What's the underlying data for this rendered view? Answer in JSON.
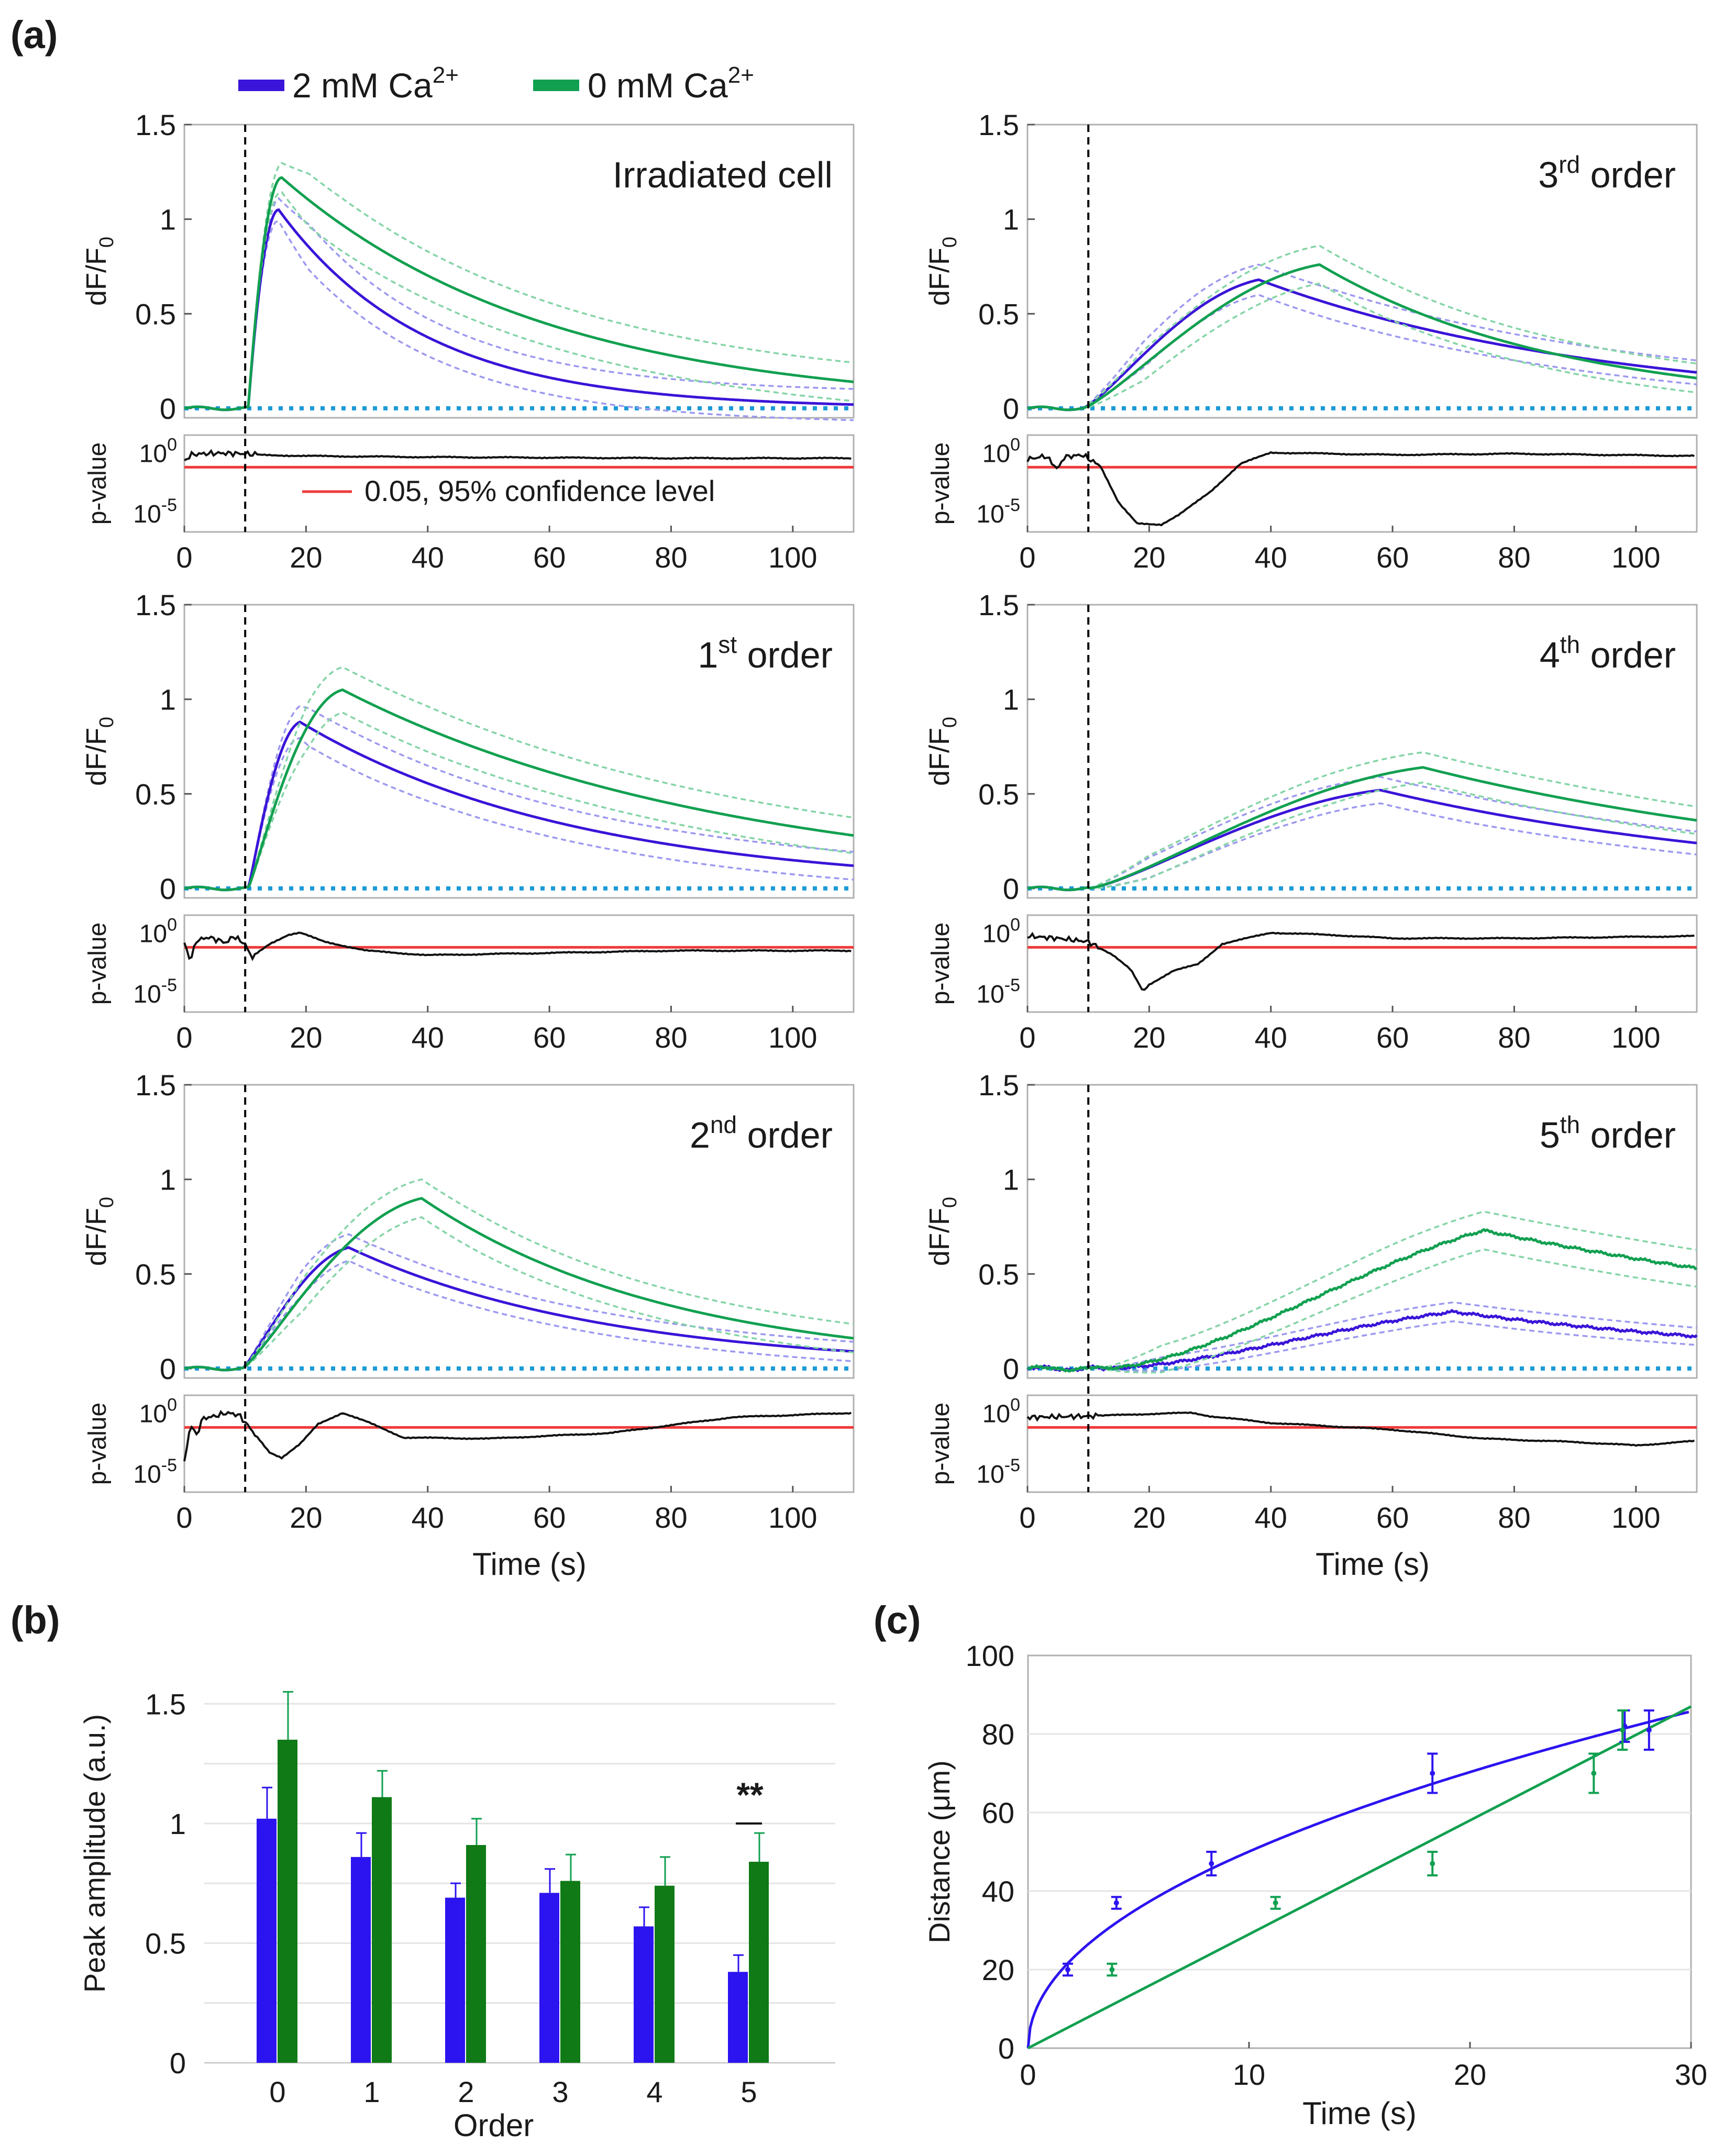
{
  "figure": {
    "panel_labels": {
      "a": "(a)",
      "b": "(b)",
      "c": "(c)"
    }
  },
  "colors": {
    "blue": "#3a14d8",
    "green": "#11a050",
    "blue_light": "#9c98f0",
    "green_light": "#84d4a6",
    "baseline": "#1b9ad6",
    "threshold": "#ee3a3a",
    "black": "#111111",
    "bar_blue": "#2c14f0",
    "bar_green": "#0f7a16"
  },
  "legend": {
    "blue_label": "2 mM Ca",
    "green_label": "0 mM Ca",
    "superscript": "2+"
  },
  "threshold_label": "0.05, 95% confidence level",
  "chart_data": [
    {
      "type": "line",
      "id": "irradiated",
      "title": "Irradiated cell",
      "ylabel": "dF/F0",
      "xlim": [
        0,
        110
      ],
      "ylim": [
        -0.05,
        1.5
      ],
      "yticks": [
        "0",
        "0.5",
        "1",
        "1.5"
      ],
      "stimulus_time": 10,
      "onset": 10.5,
      "rise_power": 1.0,
      "series": [
        {
          "name": "2 mM Ca2+",
          "peak": 1.05,
          "t_peak": 15.5,
          "end": 0.02,
          "band": 0.12
        },
        {
          "name": "0 mM Ca2+",
          "peak": 1.22,
          "t_peak": 16.0,
          "end": 0.14,
          "band": 0.14
        }
      ],
      "pvalue": {
        "ylabel": "p-value",
        "threshold": 0.05,
        "log_range": [
          -6.5,
          1
        ],
        "curve": [
          [
            0,
            -0.8
          ],
          [
            1,
            -0.2
          ],
          [
            3,
            -0.1
          ],
          [
            6,
            -0.05
          ],
          [
            10,
            -0.1
          ],
          [
            12,
            -0.2
          ],
          [
            20,
            -0.3
          ],
          [
            40,
            -0.4
          ],
          [
            80,
            -0.5
          ],
          [
            110,
            -0.5
          ]
        ]
      }
    },
    {
      "type": "line",
      "id": "order3",
      "title_num": "3",
      "title_sup": "rd",
      "title_rest": " order",
      "ylabel": "dF/F0",
      "xlim": [
        0,
        110
      ],
      "ylim": [
        -0.05,
        1.5
      ],
      "yticks": [
        "0",
        "0.5",
        "1",
        "1.5"
      ],
      "stimulus_time": 10,
      "onset": 9,
      "rise_power": 1.5,
      "series": [
        {
          "name": "2 mM Ca2+",
          "peak": 0.68,
          "t_peak": 38,
          "end": 0.19,
          "band": 0.08
        },
        {
          "name": "0 mM Ca2+",
          "peak": 0.76,
          "t_peak": 48,
          "end": 0.16,
          "band": 0.1
        }
      ],
      "pvalue": {
        "ylabel": "p-value",
        "threshold": 0.05,
        "log_range": [
          -6.5,
          1
        ],
        "curve": [
          [
            0,
            -0.6
          ],
          [
            3,
            -0.3
          ],
          [
            5,
            -1.5
          ],
          [
            6,
            -0.4
          ],
          [
            9,
            -0.2
          ],
          [
            12,
            -1.2
          ],
          [
            15,
            -4.5
          ],
          [
            18,
            -6.3
          ],
          [
            22,
            -6.4
          ],
          [
            25,
            -5.5
          ],
          [
            30,
            -3.5
          ],
          [
            35,
            -1
          ],
          [
            40,
            0
          ],
          [
            60,
            -0.2
          ],
          [
            80,
            -0.1
          ],
          [
            110,
            -0.3
          ]
        ]
      }
    },
    {
      "type": "line",
      "id": "order1",
      "title_num": "1",
      "title_sup": "st",
      "title_rest": " order",
      "ylabel": "dF/F0",
      "xlim": [
        0,
        110
      ],
      "ylim": [
        -0.05,
        1.5
      ],
      "yticks": [
        "0",
        "0.5",
        "1",
        "1.5"
      ],
      "stimulus_time": 10,
      "onset": 10.5,
      "rise_power": 1.2,
      "series": [
        {
          "name": "2 mM Ca2+",
          "peak": 0.88,
          "t_peak": 19,
          "end": 0.12,
          "band": 0.1
        },
        {
          "name": "0 mM Ca2+",
          "peak": 1.05,
          "t_peak": 26,
          "end": 0.28,
          "band": 0.12
        }
      ],
      "pvalue": {
        "ylabel": "p-value",
        "threshold": 0.05,
        "log_range": [
          -6.5,
          1
        ],
        "curve": [
          [
            0,
            -0.9
          ],
          [
            1,
            -2.5
          ],
          [
            2,
            -0.7
          ],
          [
            4,
            -0.4
          ],
          [
            7,
            -0.9
          ],
          [
            8,
            -0.3
          ],
          [
            10,
            -1
          ],
          [
            11,
            -2.2
          ],
          [
            14,
            -1
          ],
          [
            17,
            -0.2
          ],
          [
            19,
            0
          ],
          [
            23,
            -0.8
          ],
          [
            30,
            -1.6
          ],
          [
            40,
            -2
          ],
          [
            60,
            -1.8
          ],
          [
            80,
            -1.6
          ],
          [
            110,
            -1.6
          ]
        ]
      }
    },
    {
      "type": "line",
      "id": "order4",
      "title_num": "4",
      "title_sup": "th",
      "title_rest": " order",
      "ylabel": "dF/F0",
      "xlim": [
        0,
        110
      ],
      "ylim": [
        -0.05,
        1.5
      ],
      "yticks": [
        "0",
        "0.5",
        "1",
        "1.5"
      ],
      "stimulus_time": 10,
      "onset": 10,
      "rise_power": 1.6,
      "series": [
        {
          "name": "2 mM Ca2+",
          "peak": 0.52,
          "t_peak": 58,
          "end": 0.24,
          "band": 0.07
        },
        {
          "name": "0 mM Ca2+",
          "peak": 0.64,
          "t_peak": 65,
          "end": 0.36,
          "band": 0.08
        }
      ],
      "pvalue": {
        "ylabel": "p-value",
        "threshold": 0.05,
        "log_range": [
          -6.5,
          1
        ],
        "curve": [
          [
            0,
            -0.3
          ],
          [
            5,
            -0.5
          ],
          [
            10,
            -0.8
          ],
          [
            14,
            -2
          ],
          [
            17,
            -3.3
          ],
          [
            19,
            -5.2
          ],
          [
            20,
            -4.6
          ],
          [
            24,
            -3.4
          ],
          [
            28,
            -2.8
          ],
          [
            32,
            -1
          ],
          [
            40,
            0
          ],
          [
            50,
            -0.2
          ],
          [
            60,
            -0.5
          ],
          [
            80,
            -0.5
          ],
          [
            110,
            -0.3
          ]
        ]
      }
    },
    {
      "type": "line",
      "id": "order2",
      "title_num": "2",
      "title_sup": "nd",
      "title_rest": " order",
      "ylabel": "dF/F0",
      "xlim": [
        0,
        110
      ],
      "ylim": [
        -0.05,
        1.5
      ],
      "yticks": [
        "0",
        "0.5",
        "1",
        "1.5"
      ],
      "stimulus_time": 10,
      "onset": 9.5,
      "rise_power": 1.4,
      "series": [
        {
          "name": "2 mM Ca2+",
          "peak": 0.64,
          "t_peak": 27,
          "end": 0.09,
          "band": 0.07
        },
        {
          "name": "0 mM Ca2+",
          "peak": 0.9,
          "t_peak": 39,
          "end": 0.16,
          "band": 0.1
        }
      ],
      "pvalue": {
        "ylabel": "p-value",
        "threshold": 0.05,
        "log_range": [
          -6.5,
          1
        ],
        "curve": [
          [
            0,
            -4.5
          ],
          [
            1,
            -1
          ],
          [
            2,
            -2
          ],
          [
            3,
            -0.5
          ],
          [
            5,
            -0.3
          ],
          [
            7,
            0
          ],
          [
            9,
            -0.2
          ],
          [
            11,
            -1.5
          ],
          [
            14,
            -3.5
          ],
          [
            16,
            -4
          ],
          [
            19,
            -2.8
          ],
          [
            22,
            -1
          ],
          [
            26,
            0
          ],
          [
            30,
            -0.8
          ],
          [
            36,
            -2.2
          ],
          [
            50,
            -2.3
          ],
          [
            70,
            -1.8
          ],
          [
            90,
            -0.4
          ],
          [
            110,
            0
          ]
        ]
      }
    },
    {
      "type": "line",
      "id": "order5",
      "title_num": "5",
      "title_sup": "th",
      "title_rest": " order",
      "ylabel": "dF/F0",
      "xlim": [
        0,
        110
      ],
      "ylim": [
        -0.05,
        1.5
      ],
      "yticks": [
        "0",
        "0.5",
        "1",
        "1.5"
      ],
      "stimulus_time": 10,
      "onset": 12,
      "rise_power": 2.3,
      "series": [
        {
          "name": "2 mM Ca2+",
          "peak": 0.3,
          "t_peak": 70,
          "end": 0.17,
          "band": 0.05
        },
        {
          "name": "0 mM Ca2+",
          "peak": 0.73,
          "t_peak": 75,
          "end": 0.53,
          "band": 0.1
        }
      ],
      "pvalue": {
        "ylabel": "p-value",
        "threshold": 0.05,
        "log_range": [
          -6.5,
          1
        ],
        "curve": [
          [
            0,
            -0.4
          ],
          [
            10,
            -0.3
          ],
          [
            20,
            -0.1
          ],
          [
            27,
            0
          ],
          [
            30,
            -0.3
          ],
          [
            40,
            -0.9
          ],
          [
            60,
            -1.5
          ],
          [
            75,
            -2.3
          ],
          [
            90,
            -2.6
          ],
          [
            100,
            -2.9
          ],
          [
            110,
            -2.5
          ]
        ]
      }
    },
    {
      "type": "bar",
      "id": "peak_amplitude",
      "xlabel": "Order",
      "ylabel": "Peak amplitude (a.u.)",
      "categories": [
        "0",
        "1",
        "2",
        "3",
        "4",
        "5"
      ],
      "ylim": [
        0,
        1.75
      ],
      "yticks": [
        "0",
        "0.5",
        "1",
        "1.5"
      ],
      "series": [
        {
          "name": "2 mM Ca2+",
          "values": [
            1.02,
            0.86,
            0.69,
            0.71,
            0.57,
            0.38
          ],
          "errors": [
            0.13,
            0.1,
            0.06,
            0.1,
            0.08,
            0.07
          ]
        },
        {
          "name": "0 mM Ca2+",
          "values": [
            1.35,
            1.11,
            0.91,
            0.76,
            0.74,
            0.84
          ],
          "errors": [
            0.2,
            0.11,
            0.11,
            0.11,
            0.12,
            0.12
          ]
        }
      ],
      "annotation": {
        "text": "**",
        "category": "5"
      }
    },
    {
      "type": "scatter",
      "id": "distance_time",
      "xlabel": "Time (s)",
      "ylabel": "Distance (μm)",
      "xlim": [
        0,
        30
      ],
      "ylim": [
        0,
        100
      ],
      "xticks": [
        "0",
        "10",
        "20",
        "30"
      ],
      "yticks": [
        "0",
        "20",
        "40",
        "60",
        "80",
        "100"
      ],
      "series": [
        {
          "name": "2 mM Ca2+",
          "x": [
            1.8,
            4,
            8.3,
            18.3,
            27,
            28.1
          ],
          "y": [
            20,
            37,
            47,
            70,
            82,
            81
          ],
          "errors": [
            1.5,
            1.5,
            3,
            5,
            4,
            5
          ],
          "fit": {
            "type": "power",
            "coef": 16.2,
            "exponent": 0.49
          }
        },
        {
          "name": "0 mM Ca2+",
          "x": [
            3.8,
            11.2,
            18.3,
            25.6,
            26.9
          ],
          "y": [
            20,
            37,
            47,
            70,
            81
          ],
          "errors": [
            1.5,
            1.5,
            3,
            5,
            5
          ],
          "fit": {
            "type": "linear",
            "slope": 2.9
          }
        }
      ]
    }
  ],
  "axes_text": {
    "time_label": "Time (s)",
    "pvalue_ticks": [
      "10",
      "0",
      "10",
      "-5"
    ],
    "x_ticks_a": [
      "0",
      "20",
      "40",
      "60",
      "80",
      "100"
    ]
  }
}
